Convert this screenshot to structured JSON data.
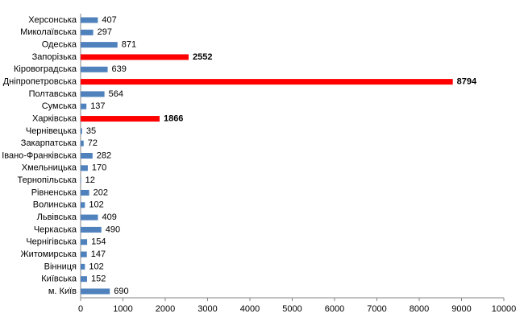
{
  "chart_data": {
    "type": "barh",
    "categories": [
      "Херсонська",
      "Миколаївська",
      "Одеська",
      "Запорізька",
      "Кіровоградська",
      "Дніпропетровська",
      "Полтавська",
      "Сумська",
      "Харківська",
      "Чернівецька",
      "Закарпатська",
      "Івано-Франківська",
      "Хмельницька",
      "Тернопільська",
      "Рівненська",
      "Волинська",
      "Львівська",
      "Черкаська",
      "Чернігівська",
      "Житомирська",
      "Вінниця",
      "Київська",
      "м. Київ"
    ],
    "values": [
      407,
      297,
      871,
      2552,
      639,
      8794,
      564,
      137,
      1866,
      35,
      72,
      282,
      170,
      12,
      202,
      102,
      409,
      490,
      154,
      147,
      102,
      152,
      690
    ],
    "color": "#4f81bd",
    "colors": [
      "#4f81bd",
      "#4f81bd",
      "#4f81bd",
      "#ff0000",
      "#4f81bd",
      "#ff0000",
      "#4f81bd",
      "#4f81bd",
      "#ff0000",
      "#4f81bd",
      "#4f81bd",
      "#4f81bd",
      "#4f81bd",
      "#4f81bd",
      "#4f81bd",
      "#4f81bd",
      "#4f81bd",
      "#4f81bd",
      "#4f81bd",
      "#4f81bd",
      "#4f81bd",
      "#4f81bd",
      "#4f81bd"
    ],
    "xlim": [
      0,
      10000
    ],
    "xticks": [
      0,
      1000,
      2000,
      3000,
      4000,
      5000,
      6000,
      7000,
      8000,
      9000,
      10000
    ]
  }
}
